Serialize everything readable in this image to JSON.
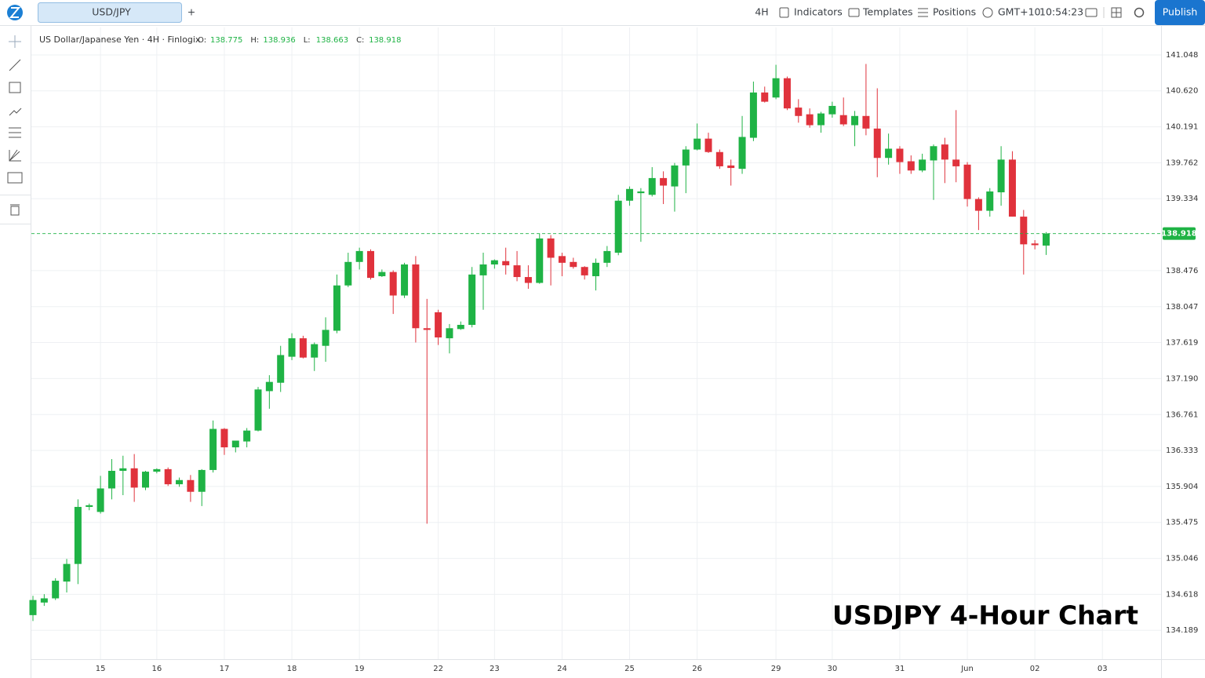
{
  "toolbar": {
    "tab": "USD/JPY",
    "add_tab": "+",
    "interval": "4H",
    "indicators": "Indicators",
    "templates": "Templates",
    "positions": "Positions",
    "timezone": "GMT+10",
    "time": "10:54:23",
    "publish": "Publish"
  },
  "chart_data": {
    "type": "candlestick",
    "title": "USDJPY 4-Hour Chart",
    "instrument": "US Dollar/Japanese Yen · 4H · Finlogix",
    "ohlc_labels": [
      "O:",
      "H:",
      "L:",
      "C:"
    ],
    "categories": [
      null,
      null,
      null,
      null,
      null,
      null,
      "15",
      null,
      null,
      null,
      null,
      "16",
      null,
      null,
      null,
      null,
      null,
      "17",
      null,
      null,
      null,
      null,
      null,
      "18",
      null,
      null,
      null,
      null,
      null,
      "19",
      null,
      null,
      null,
      null,
      null,
      null,
      "22",
      null,
      null,
      null,
      null,
      "23",
      null,
      null,
      null,
      null,
      null,
      "24",
      null,
      null,
      null,
      null,
      null,
      "25",
      null,
      null,
      null,
      null,
      null,
      "26",
      null,
      null,
      null,
      null,
      null,
      null,
      "29",
      null,
      null,
      null,
      null,
      "30",
      null,
      null,
      null,
      null,
      null,
      "31",
      null,
      null,
      null,
      null,
      null,
      "Jun",
      null,
      null,
      null,
      null,
      null,
      "02",
      null,
      null,
      null,
      null,
      null,
      "03"
    ],
    "open": [
      134.37,
      134.52,
      134.57,
      134.77,
      134.98,
      135.66,
      135.6,
      135.88,
      136.09,
      136.12,
      135.89,
      136.08,
      136.11,
      135.93,
      135.98,
      135.84,
      136.1,
      136.59,
      136.37,
      136.44,
      136.57,
      137.04,
      137.14,
      137.45,
      137.67,
      137.44,
      137.58,
      137.76,
      138.3,
      138.58,
      138.71,
      138.41,
      138.46,
      138.18,
      138.55,
      137.79,
      137.98,
      137.67,
      137.78,
      137.83,
      138.42,
      138.55,
      138.59,
      138.54,
      138.4,
      138.33,
      138.86,
      138.65,
      138.58,
      138.52,
      138.41,
      138.57,
      138.69,
      139.31,
      139.4,
      139.38,
      139.58,
      139.48,
      139.73,
      139.92,
      140.05,
      139.89,
      139.73,
      139.69,
      140.06,
      140.6,
      140.54,
      140.77,
      140.42,
      140.34,
      140.21,
      140.34,
      140.33,
      140.21,
      140.32,
      140.17,
      139.82,
      139.93,
      139.78,
      139.67,
      139.79,
      139.98,
      139.8,
      139.74,
      139.33,
      139.19,
      139.41,
      139.8,
      139.12,
      138.8,
      138.775,
      null,
      null,
      null,
      null,
      null
    ],
    "high": [
      134.6,
      134.62,
      134.81,
      135.04,
      135.75,
      135.7,
      136.03,
      136.23,
      136.27,
      136.29,
      136.09,
      136.12,
      136.13,
      136.01,
      136.04,
      136.11,
      136.69,
      136.6,
      136.42,
      136.6,
      137.09,
      137.23,
      137.58,
      137.73,
      137.7,
      137.62,
      137.92,
      138.43,
      138.69,
      138.75,
      138.73,
      138.49,
      138.48,
      138.57,
      138.65,
      138.14,
      138.01,
      137.84,
      137.87,
      138.52,
      138.69,
      138.61,
      138.75,
      138.71,
      138.54,
      138.92,
      138.9,
      138.69,
      138.63,
      138.53,
      138.62,
      138.77,
      139.38,
      139.48,
      139.46,
      139.71,
      139.66,
      139.76,
      139.96,
      140.23,
      140.12,
      139.92,
      139.8,
      140.32,
      140.73,
      140.67,
      140.93,
      140.79,
      140.52,
      140.41,
      140.37,
      140.49,
      140.54,
      140.38,
      140.94,
      140.65,
      140.11,
      139.96,
      139.85,
      139.87,
      139.98,
      140.06,
      140.39,
      139.77,
      139.35,
      139.46,
      139.96,
      139.9,
      139.2,
      138.84,
      138.936,
      null,
      null,
      null,
      null,
      null
    ],
    "low": [
      134.3,
      134.48,
      134.55,
      134.64,
      134.74,
      135.62,
      135.58,
      135.75,
      135.8,
      135.72,
      135.86,
      136.06,
      135.91,
      135.9,
      135.72,
      135.67,
      136.07,
      136.28,
      136.31,
      136.37,
      136.56,
      136.83,
      137.03,
      137.41,
      137.43,
      137.28,
      137.39,
      137.73,
      138.28,
      138.49,
      138.37,
      138.4,
      137.96,
      138.15,
      137.62,
      135.46,
      137.59,
      137.49,
      137.77,
      137.8,
      138.01,
      138.5,
      138.43,
      138.35,
      138.26,
      138.32,
      138.3,
      138.41,
      138.5,
      138.37,
      138.24,
      138.52,
      138.66,
      139.25,
      138.82,
      139.36,
      139.27,
      139.18,
      139.4,
      139.91,
      139.88,
      139.69,
      139.49,
      139.63,
      140.02,
      140.48,
      140.52,
      140.39,
      140.24,
      140.18,
      140.12,
      140.3,
      140.2,
      139.96,
      140.09,
      139.59,
      139.74,
      139.63,
      139.63,
      139.65,
      139.32,
      139.52,
      139.53,
      139.24,
      138.96,
      139.12,
      139.25,
      139.12,
      138.43,
      138.73,
      138.663,
      null,
      null,
      null,
      null,
      null
    ],
    "close": [
      134.55,
      134.57,
      134.78,
      134.98,
      135.66,
      135.68,
      135.88,
      136.09,
      136.12,
      135.89,
      136.08,
      136.11,
      135.93,
      135.98,
      135.84,
      136.1,
      136.59,
      136.37,
      136.45,
      136.57,
      137.06,
      137.15,
      137.47,
      137.67,
      137.44,
      137.6,
      137.77,
      138.3,
      138.58,
      138.71,
      138.39,
      138.46,
      138.18,
      138.55,
      137.79,
      137.77,
      137.68,
      137.79,
      137.83,
      138.43,
      138.55,
      138.6,
      138.54,
      138.4,
      138.33,
      138.86,
      138.63,
      138.57,
      138.52,
      138.42,
      138.57,
      138.71,
      139.31,
      139.45,
      139.42,
      139.58,
      139.49,
      139.73,
      139.92,
      140.05,
      139.89,
      139.72,
      139.7,
      140.07,
      140.6,
      140.49,
      140.77,
      140.41,
      140.32,
      140.21,
      140.35,
      140.44,
      140.22,
      140.32,
      140.17,
      139.82,
      139.93,
      139.77,
      139.67,
      139.8,
      139.96,
      139.8,
      139.72,
      139.33,
      139.19,
      139.42,
      139.8,
      139.12,
      138.79,
      138.78,
      138.918,
      null,
      null,
      null,
      null,
      null
    ],
    "up_color": "#1fb345",
    "down_color": "#e0323c",
    "grid": true,
    "ylim": [
      133.845,
      141.375
    ],
    "yticks": [
      141.048,
      {
        "value": 140.62,
        "label": "140.620"
      },
      140.191,
      139.762,
      139.334,
      138.476,
      138.047,
      137.619,
      {
        "value": 137.19,
        "label": "137.190"
      },
      136.761,
      136.333,
      135.904,
      135.475,
      135.046,
      134.618,
      134.189
    ]
  }
}
